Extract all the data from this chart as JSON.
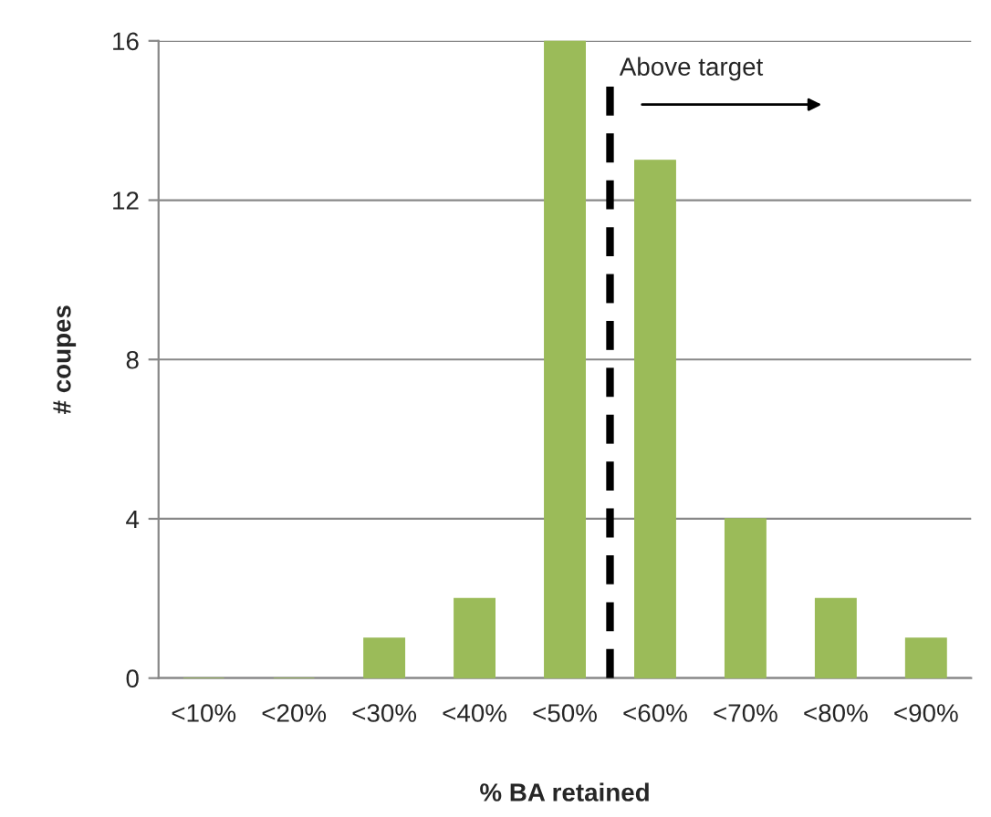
{
  "chart_data": {
    "type": "bar",
    "xlabel": "% BA retained",
    "ylabel": "# coupes",
    "categories": [
      "<10%",
      "<20%",
      "<30%",
      "<40%",
      "<50%",
      "<60%",
      "<70%",
      "<80%",
      "<90%"
    ],
    "values": [
      0,
      0,
      1,
      2,
      16,
      13,
      4,
      2,
      1
    ],
    "color": "#9bbb59",
    "ylim": [
      0,
      16
    ],
    "yticks": [
      0,
      4,
      8,
      12,
      16
    ],
    "grid": "y",
    "legend": false,
    "annotations": [
      "Above target"
    ]
  }
}
